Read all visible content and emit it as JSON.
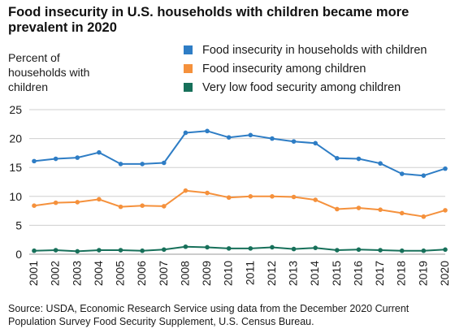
{
  "title": "Food insecurity in U.S. households with children became more prevalent in 2020",
  "source": "Source: USDA, Economic Research Service using data from the December 2020 Current Population Survey Food Security Supplement, U.S. Census Bureau.",
  "chart_data": {
    "type": "line",
    "title": "Food insecurity in U.S. households with children became more prevalent in 2020",
    "ylabel": "Percent of households with children",
    "xlabel": "",
    "ylim": [
      0,
      25
    ],
    "yticks": [
      0,
      5,
      10,
      15,
      20,
      25
    ],
    "grid": "horizontal",
    "legend_position": "top-right",
    "categories": [
      "2001",
      "2002",
      "2003",
      "2004",
      "2005",
      "2006",
      "2007",
      "2008",
      "2009",
      "2010",
      "2011",
      "2012",
      "2013",
      "2014",
      "2015",
      "2016",
      "2017",
      "2018",
      "2019",
      "2020"
    ],
    "series": [
      {
        "name": "Food insecurity in households with children",
        "color": "#2e7dc5",
        "values": [
          16.1,
          16.5,
          16.7,
          17.6,
          15.6,
          15.6,
          15.8,
          21.0,
          21.3,
          20.2,
          20.6,
          20.0,
          19.5,
          19.2,
          16.6,
          16.5,
          15.7,
          13.9,
          13.6,
          14.8
        ]
      },
      {
        "name": "Food insecurity among children",
        "color": "#f5913c",
        "values": [
          8.4,
          8.9,
          9.0,
          9.5,
          8.2,
          8.4,
          8.3,
          11.0,
          10.6,
          9.8,
          10.0,
          10.0,
          9.9,
          9.4,
          7.8,
          8.0,
          7.7,
          7.1,
          6.5,
          7.6
        ]
      },
      {
        "name": "Very low food security among children",
        "color": "#17705a",
        "values": [
          0.6,
          0.7,
          0.5,
          0.7,
          0.7,
          0.6,
          0.8,
          1.3,
          1.2,
          1.0,
          1.0,
          1.2,
          0.9,
          1.1,
          0.7,
          0.8,
          0.7,
          0.6,
          0.6,
          0.8
        ]
      }
    ]
  }
}
